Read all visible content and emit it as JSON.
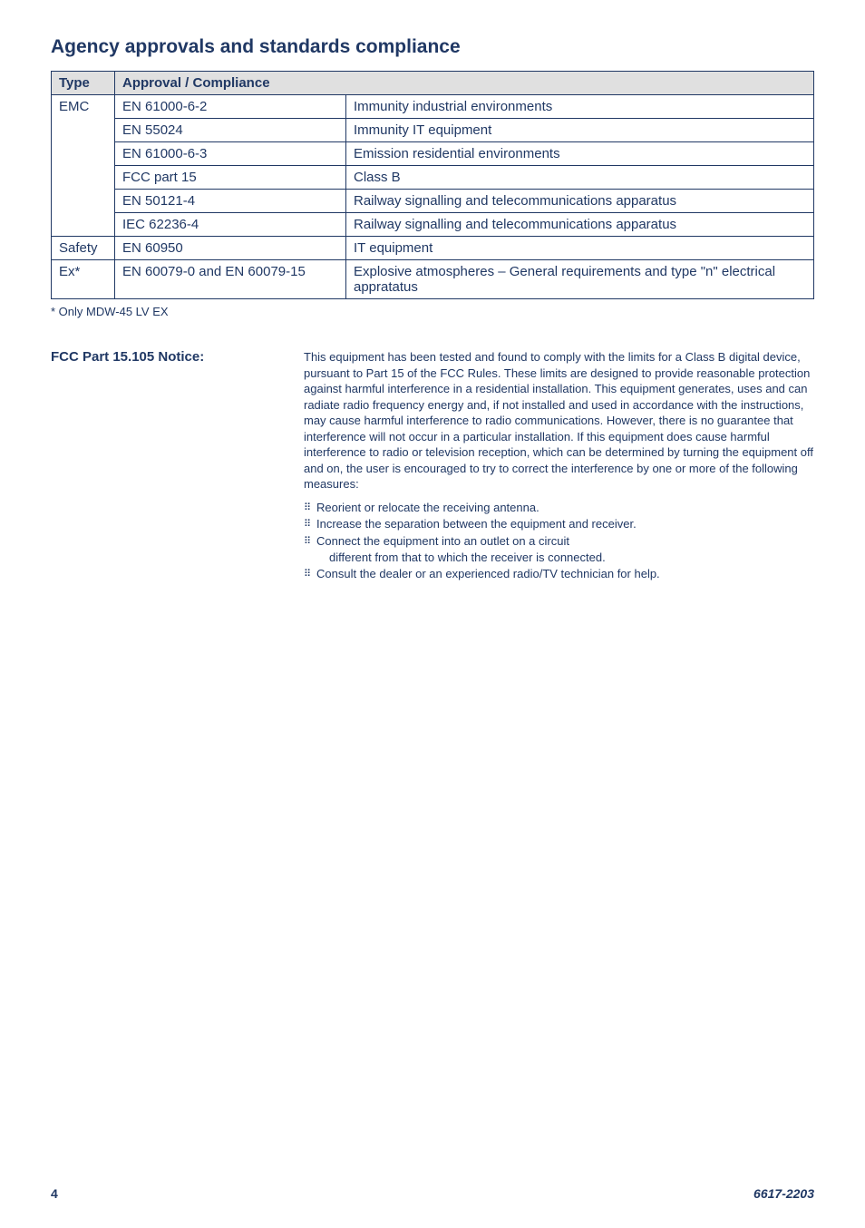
{
  "heading": "Agency approvals and standards compliance",
  "table": {
    "headers": [
      "Type",
      "Approval / Compliance"
    ],
    "rows": [
      {
        "type": "EMC",
        "typeRowspan": 6,
        "approval": "EN 61000-6-2",
        "desc": "Immunity industrial environments"
      },
      {
        "approval": "EN 55024",
        "desc": "Immunity IT equipment"
      },
      {
        "approval": "EN 61000-6-3",
        "desc": "Emission residential environments"
      },
      {
        "approval": "FCC part 15",
        "desc": "Class B"
      },
      {
        "approval": "EN 50121-4",
        "desc": "Railway signalling and telecommunications apparatus"
      },
      {
        "approval": "IEC 62236-4",
        "desc": "Railway signalling and telecommunications apparatus"
      },
      {
        "type": "Safety",
        "typeRowspan": 1,
        "approval": "EN 60950",
        "desc": "IT equipment"
      },
      {
        "type": "Ex*",
        "typeRowspan": 1,
        "approval": "EN 60079-0 and EN 60079-15",
        "desc": "Explosive atmospheres – General requirements and type \"n\" electrical appratatus"
      }
    ]
  },
  "footnote": "* Only MDW-45 LV EX",
  "notice": {
    "label": "FCC Part 15.105 Notice:",
    "body": "This equipment has been tested and found to comply with the limits for a Class B digital device, pursuant to Part 15 of the FCC Rules. These limits are designed to provide reasonable protection against harmful interference in a residential installation. This equipment generates, uses and can radiate radio frequency energy and, if not installed and used in accordance with the instructions, may cause harmful interference to radio communications. However, there is no guarantee that interference will not occur in a particular installation. If this equipment does cause harmful interference to radio or television reception, which can be determined by turning the equipment off and on, the user is encouraged to try to correct the interference by one or more of the following measures:",
    "measures": [
      "Reorient or relocate the receiving antenna.",
      "Increase the separation between the equipment and receiver.",
      "Connect the equipment into an outlet on a circuit",
      "Consult the dealer or an experienced radio/TV technician for help."
    ],
    "measureIndent": "different from that to which the receiver is connected."
  },
  "footer": {
    "pageNumber": "4",
    "docId": "6617-2203"
  },
  "style": {
    "pageWidth": 954,
    "pageHeight": 1354,
    "textColor": "#203864",
    "headerBg": "#e0e0e0",
    "background": "#ffffff",
    "headingFontSize": 21,
    "tableFontSize": 15,
    "bodyFontSize": 13,
    "footnoteFontSize": 13,
    "col1Width": 70,
    "col2Width": 255
  }
}
